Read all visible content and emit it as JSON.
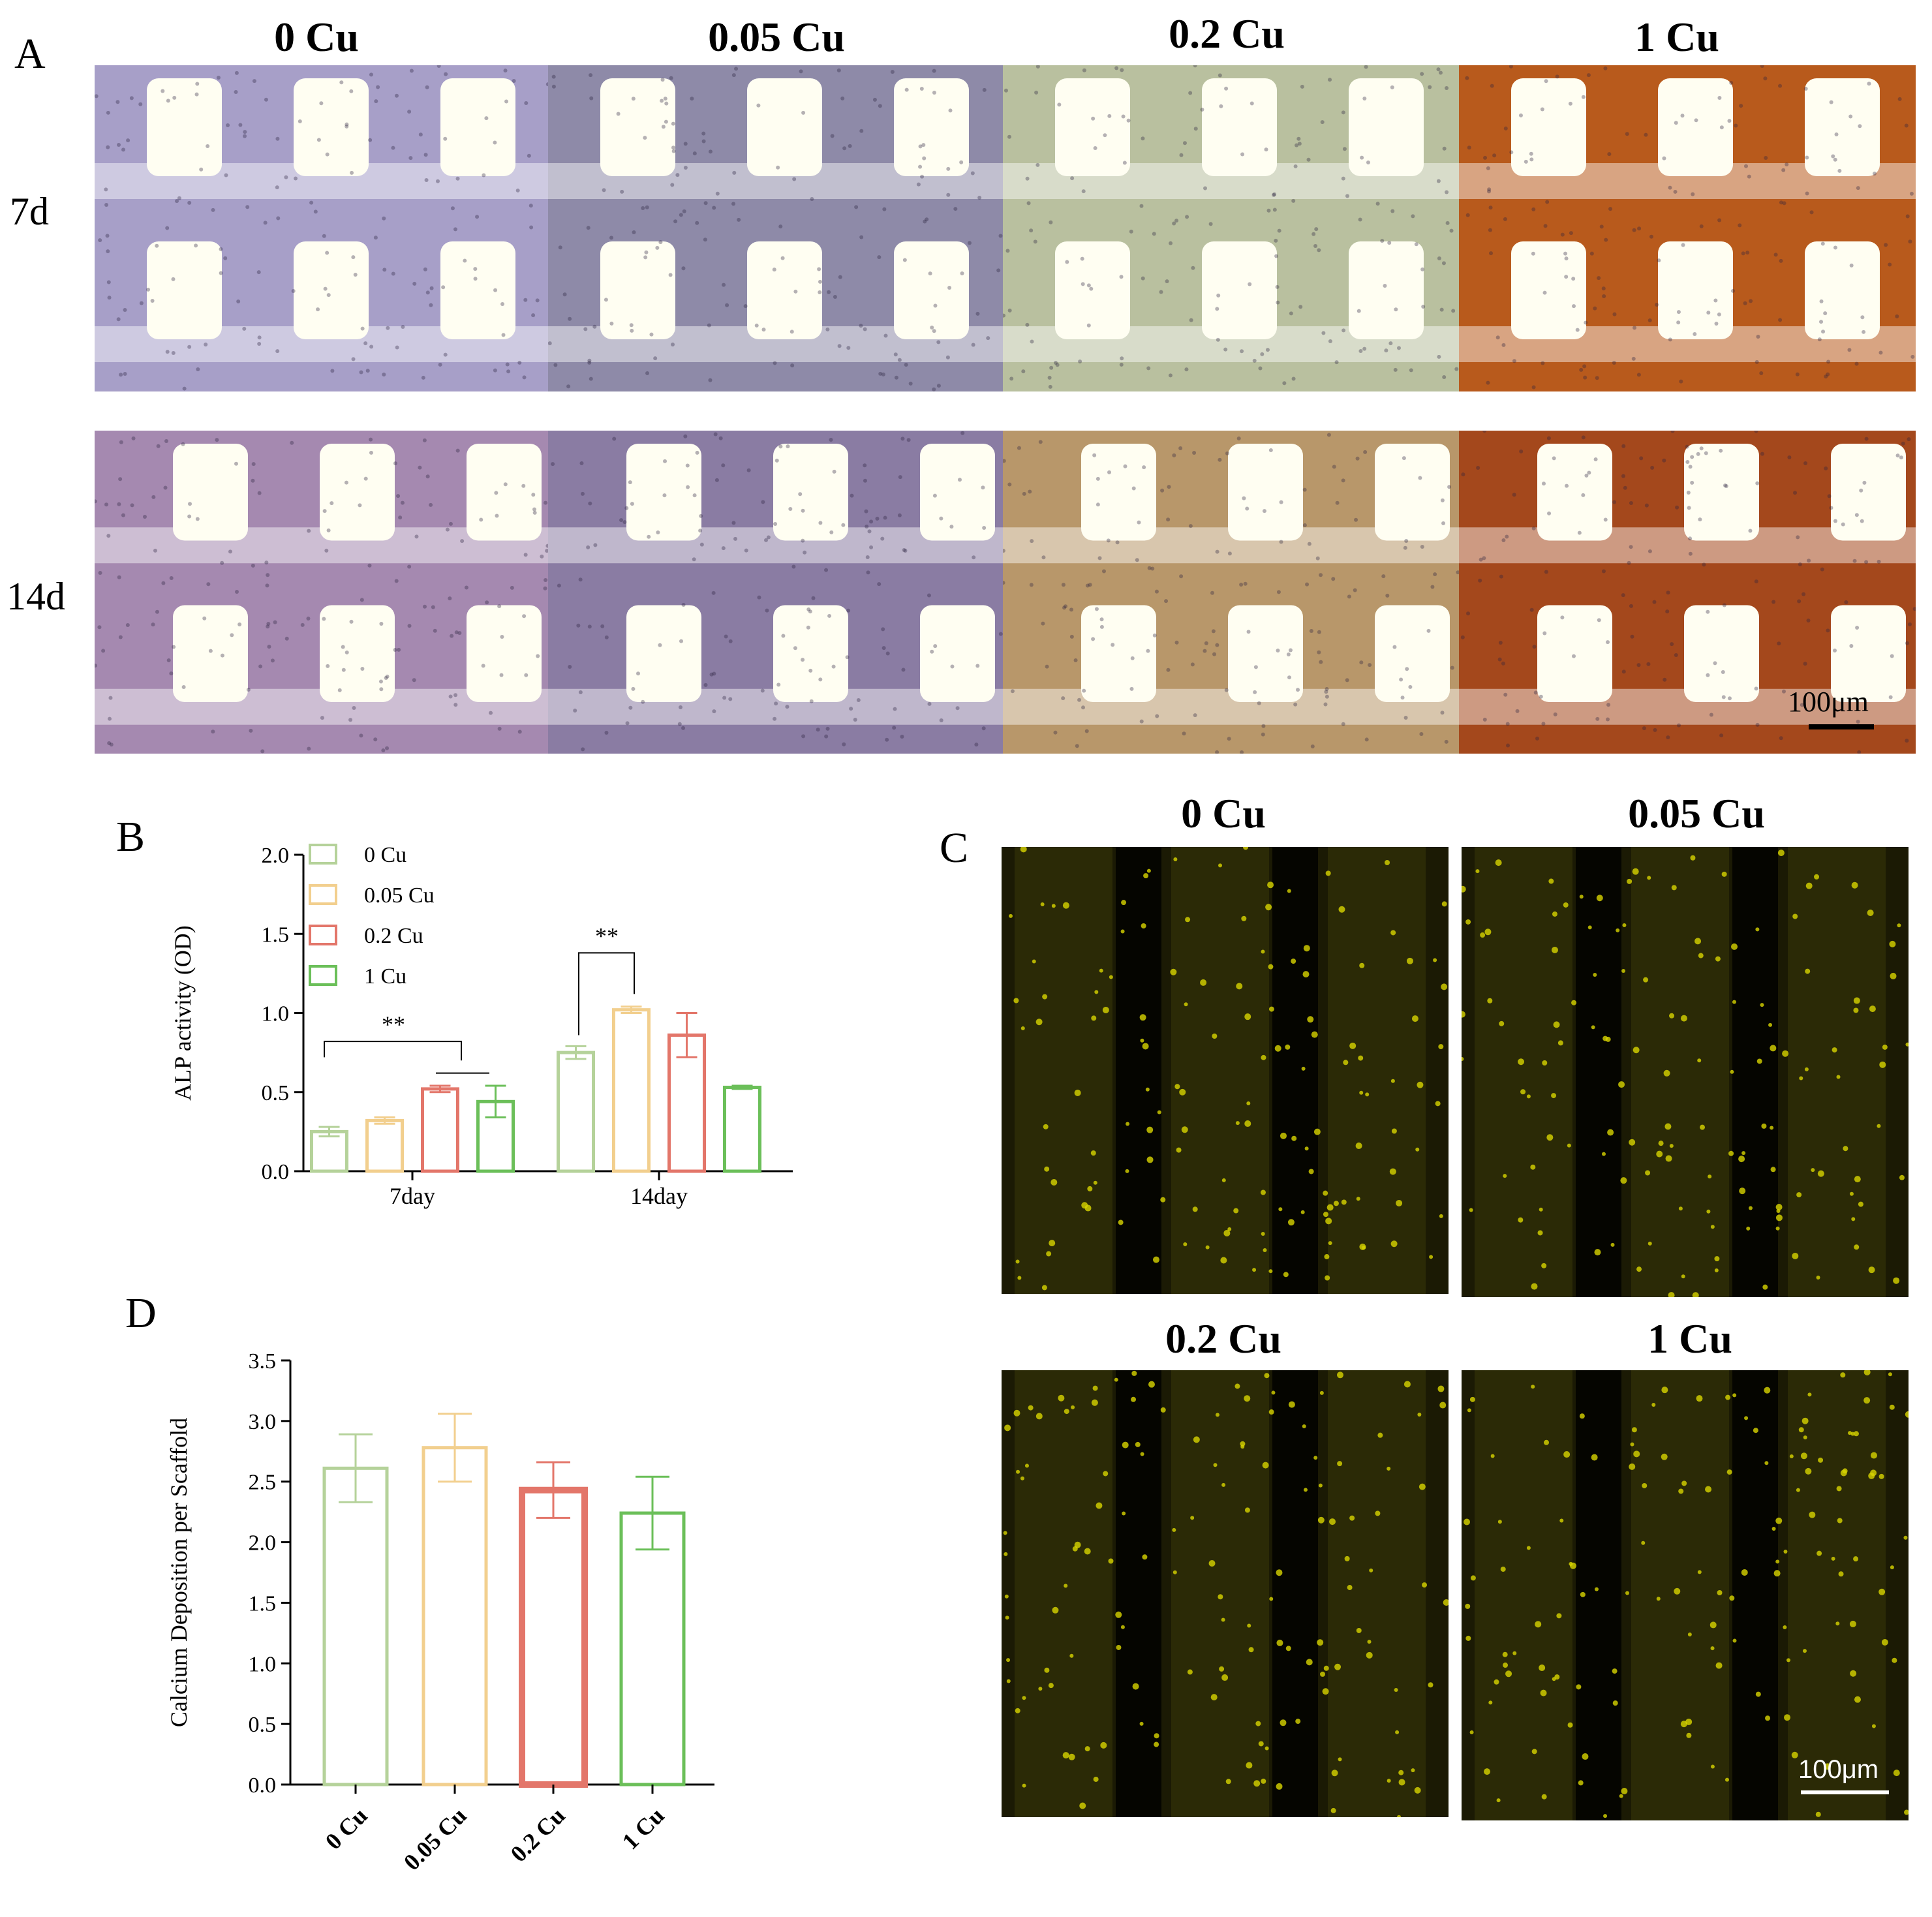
{
  "panels": {
    "A": "A",
    "B": "B",
    "C": "C",
    "D": "D"
  },
  "panelA": {
    "columns": [
      "0 Cu",
      "0.05 Cu",
      "0.2 Cu",
      "1 Cu"
    ],
    "rows": [
      "7d",
      "14d"
    ],
    "scale_bar": "100μm",
    "tints": {
      "0 Cu": "#a79fc8",
      "0.05 Cu": "#8e8aa8",
      "0.2 Cu": "#b9c09f",
      "1 Cu": "#b85a1c",
      "0 Cu 14d": "#a589b0",
      "0.05 Cu 14d": "#8a7ca3",
      "0.2 Cu 14d": "#b8976a",
      "1 Cu 14d": "#a4481c"
    }
  },
  "panelC": {
    "columns": [
      "0 Cu",
      "0.05 Cu",
      "0.2 Cu",
      "1 Cu"
    ],
    "scale_bar": "100μm",
    "fluor_color": "#d8d400"
  },
  "colors": {
    "0 Cu": "#b5d29a",
    "0.05 Cu": "#f2cf8e",
    "0.2 Cu": "#e3766a",
    "1 Cu": "#6bbf59"
  },
  "chart_data": [
    {
      "type": "bar",
      "ylabel": "ALP activity (OD)",
      "xlabel": "",
      "categories": [
        "7day",
        "14day"
      ],
      "ylim": [
        0,
        2.0
      ],
      "yticks": [
        "0.0",
        "0.5",
        "1.0",
        "1.5",
        "2.0"
      ],
      "series": [
        {
          "name": "0 Cu",
          "values": [
            0.25,
            0.75
          ],
          "errors": [
            0.03,
            0.04
          ]
        },
        {
          "name": "0.05 Cu",
          "values": [
            0.32,
            1.02
          ],
          "errors": [
            0.02,
            0.02
          ]
        },
        {
          "name": "0.2 Cu",
          "values": [
            0.52,
            0.86
          ],
          "errors": [
            0.02,
            0.14
          ]
        },
        {
          "name": "1 Cu",
          "values": [
            0.44,
            0.53
          ],
          "errors": [
            0.1,
            0.01
          ]
        }
      ],
      "annotations": [
        "**",
        "**"
      ],
      "legend": "top-left"
    },
    {
      "type": "bar",
      "ylabel": "Calcium Deposition per Scaffold",
      "xlabel": "",
      "categories": [
        "0 Cu",
        "0.05 Cu",
        "0.2 Cu",
        "1 Cu"
      ],
      "values": [
        2.61,
        2.78,
        2.43,
        2.24
      ],
      "errors": [
        0.28,
        0.28,
        0.23,
        0.3
      ],
      "ylim": [
        0,
        3.5
      ],
      "yticks": [
        "0.0",
        "0.5",
        "1.0",
        "1.5",
        "2.0",
        "2.5",
        "3.0",
        "3.5"
      ]
    }
  ]
}
